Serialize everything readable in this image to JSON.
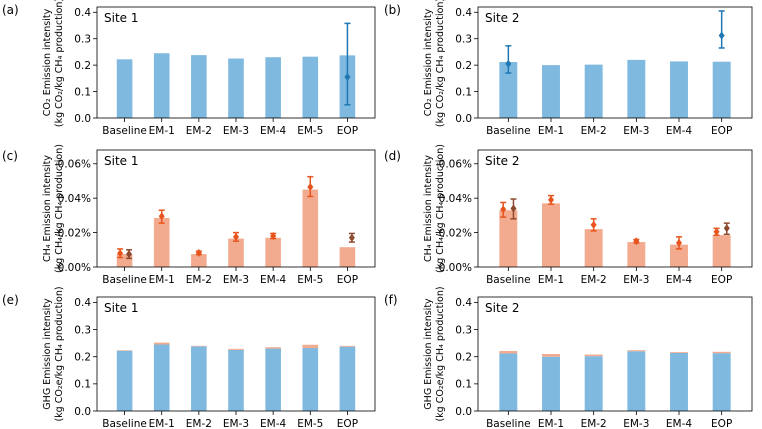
{
  "colors": {
    "blue": "#7fb9e0",
    "orange": "#f2ab8f",
    "err_blue": "#1f77b4",
    "err_orange": "#e8541d",
    "err_dark": "#8c4a2f"
  },
  "chart_data": [
    {
      "type": "bar",
      "panel_label": "(a)",
      "site": "Site 1",
      "ylabel_lines": [
        "CO₂ Emission intensity",
        "(kg CO₂/kg CH₄ production)"
      ],
      "categories": [
        "Baseline",
        "EM-1",
        "EM-2",
        "EM-3",
        "EM-4",
        "EM-5",
        "EOP"
      ],
      "ylim": [
        0,
        0.42
      ],
      "yticks": [
        "0.0",
        "0.1",
        "0.2",
        "0.3",
        "0.4"
      ],
      "ytick_values": [
        0,
        0.1,
        0.2,
        0.3,
        0.4
      ],
      "series": [
        {
          "name": "CO2",
          "color": "blue",
          "values": [
            0.222,
            0.245,
            0.238,
            0.225,
            0.23,
            0.232,
            0.237
          ]
        }
      ],
      "error_points": [
        {
          "category": "EOP",
          "y": 0.155,
          "low": 0.05,
          "high": 0.358,
          "color": "err_blue"
        }
      ]
    },
    {
      "type": "bar",
      "panel_label": "(b)",
      "site": "Site 2",
      "ylabel_lines": [
        "CO₂ Emission intensity",
        "(kg CO₂/kg CH₄ production)"
      ],
      "categories": [
        "Baseline",
        "EM-1",
        "EM-2",
        "EM-3",
        "EM-4",
        "EOP"
      ],
      "ylim": [
        0,
        0.42
      ],
      "yticks": [
        "0.0",
        "0.1",
        "0.2",
        "0.3",
        "0.4"
      ],
      "ytick_values": [
        0,
        0.1,
        0.2,
        0.3,
        0.4
      ],
      "series": [
        {
          "name": "CO2",
          "color": "blue",
          "values": [
            0.212,
            0.2,
            0.202,
            0.22,
            0.214,
            0.213
          ]
        }
      ],
      "error_points": [
        {
          "category": "Baseline",
          "y": 0.205,
          "low": 0.17,
          "high": 0.273,
          "color": "err_blue"
        },
        {
          "category": "EOP",
          "y": 0.312,
          "low": 0.265,
          "high": 0.405,
          "color": "err_blue"
        }
      ]
    },
    {
      "type": "bar",
      "panel_label": "(c)",
      "site": "Site 1",
      "ylabel_lines": [
        "CH₄ Emission intensity",
        "(kg CH₄/kg CH₄ production)"
      ],
      "categories": [
        "Baseline",
        "EM-1",
        "EM-2",
        "EM-3",
        "EM-4",
        "EM-5",
        "EOP"
      ],
      "ylim": [
        0,
        0.00068
      ],
      "yticks": [
        "0.00%",
        "0.02%",
        "0.04%",
        "0.06%"
      ],
      "ytick_values": [
        0,
        0.0002,
        0.0004,
        0.0006
      ],
      "series": [
        {
          "name": "CH4",
          "color": "orange",
          "values": [
            7.5e-05,
            0.000285,
            7.5e-05,
            0.000165,
            0.00017,
            0.00045,
            0.000115
          ]
        }
      ],
      "error_points": [
        {
          "category": "Baseline",
          "offset": -0.12,
          "y": 8e-05,
          "low": 5.5e-05,
          "high": 0.000105,
          "color": "err_orange"
        },
        {
          "category": "Baseline",
          "offset": 0.12,
          "y": 7.5e-05,
          "low": 5e-05,
          "high": 0.0001,
          "color": "err_dark"
        },
        {
          "category": "EM-1",
          "offset": 0,
          "y": 0.000295,
          "low": 0.000255,
          "high": 0.00033,
          "color": "err_orange"
        },
        {
          "category": "EM-2",
          "offset": 0,
          "y": 8.2e-05,
          "low": 7.2e-05,
          "high": 9.2e-05,
          "color": "err_orange"
        },
        {
          "category": "EM-3",
          "offset": 0,
          "y": 0.000175,
          "low": 0.00015,
          "high": 0.0002,
          "color": "err_orange"
        },
        {
          "category": "EM-4",
          "offset": 0,
          "y": 0.00018,
          "low": 0.000165,
          "high": 0.000195,
          "color": "err_orange"
        },
        {
          "category": "EM-5",
          "offset": 0,
          "y": 0.000465,
          "low": 0.00041,
          "high": 0.000525,
          "color": "err_orange"
        },
        {
          "category": "EOP",
          "offset": 0.12,
          "y": 0.00017,
          "low": 0.000145,
          "high": 0.000195,
          "color": "err_dark"
        }
      ]
    },
    {
      "type": "bar",
      "panel_label": "(d)",
      "site": "Site 2",
      "ylabel_lines": [
        "CH₄ Emission intensity",
        "(kg CH₄/kg CH₄ production)"
      ],
      "categories": [
        "Baseline",
        "EM-1",
        "EM-2",
        "EM-3",
        "EM-4",
        "EOP"
      ],
      "ylim": [
        0,
        0.00068
      ],
      "yticks": [
        "0.00%",
        "0.02%",
        "0.04%",
        "0.06%"
      ],
      "ytick_values": [
        0,
        0.0002,
        0.0004,
        0.0006
      ],
      "series": [
        {
          "name": "CH4",
          "color": "orange",
          "values": [
            0.00033,
            0.00037,
            0.00022,
            0.000145,
            0.00013,
            0.000185
          ]
        }
      ],
      "error_points": [
        {
          "category": "Baseline",
          "offset": -0.12,
          "y": 0.000335,
          "low": 0.00029,
          "high": 0.000375,
          "color": "err_orange"
        },
        {
          "category": "Baseline",
          "offset": 0.12,
          "y": 0.00034,
          "low": 0.00028,
          "high": 0.000395,
          "color": "err_dark"
        },
        {
          "category": "EM-1",
          "offset": 0,
          "y": 0.00039,
          "low": 0.000365,
          "high": 0.000415,
          "color": "err_orange"
        },
        {
          "category": "EM-2",
          "offset": 0,
          "y": 0.000245,
          "low": 0.00021,
          "high": 0.00028,
          "color": "err_orange"
        },
        {
          "category": "EM-3",
          "offset": 0,
          "y": 0.00015,
          "low": 0.00014,
          "high": 0.00016,
          "color": "err_orange"
        },
        {
          "category": "EM-4",
          "offset": 0,
          "y": 0.00014,
          "low": 0.000105,
          "high": 0.000175,
          "color": "err_orange"
        },
        {
          "category": "EOP",
          "offset": -0.12,
          "y": 0.000205,
          "low": 0.000185,
          "high": 0.000225,
          "color": "err_orange"
        },
        {
          "category": "EOP",
          "offset": 0.12,
          "y": 0.000225,
          "low": 0.00019,
          "high": 0.000255,
          "color": "err_dark"
        }
      ]
    },
    {
      "type": "bar",
      "panel_label": "(e)",
      "site": "Site 1",
      "ylabel_lines": [
        "GHG Emission intensity",
        "(kg CO₂e/kg CH₄ production)"
      ],
      "categories": [
        "Baseline",
        "EM-1",
        "EM-2",
        "EM-3",
        "EM-4",
        "EM-5",
        "EOP"
      ],
      "ylim": [
        0,
        0.42
      ],
      "yticks": [
        "0.0",
        "0.1",
        "0.2",
        "0.3",
        "0.4"
      ],
      "ytick_values": [
        0,
        0.1,
        0.2,
        0.3,
        0.4
      ],
      "stacked": true,
      "series": [
        {
          "name": "CO2",
          "color": "blue",
          "values": [
            0.222,
            0.245,
            0.238,
            0.225,
            0.23,
            0.232,
            0.237
          ]
        },
        {
          "name": "CH4",
          "color": "orange",
          "values": [
            0.002,
            0.007,
            0.002,
            0.004,
            0.005,
            0.012,
            0.003
          ]
        }
      ],
      "error_points": []
    },
    {
      "type": "bar",
      "panel_label": "(f)",
      "site": "Site 2",
      "ylabel_lines": [
        "GHG Emission intensity",
        "(kg CO₂e/kg CH₄ production)"
      ],
      "categories": [
        "Baseline",
        "EM-1",
        "EM-2",
        "EM-3",
        "EM-4",
        "EOP"
      ],
      "ylim": [
        0,
        0.42
      ],
      "yticks": [
        "0.0",
        "0.1",
        "0.2",
        "0.3",
        "0.4"
      ],
      "ytick_values": [
        0,
        0.1,
        0.2,
        0.3,
        0.4
      ],
      "stacked": true,
      "series": [
        {
          "name": "CO2",
          "color": "blue",
          "values": [
            0.212,
            0.2,
            0.202,
            0.22,
            0.214,
            0.213
          ]
        },
        {
          "name": "CH4",
          "color": "orange",
          "values": [
            0.009,
            0.01,
            0.006,
            0.004,
            0.003,
            0.005
          ]
        }
      ],
      "error_points": []
    }
  ]
}
